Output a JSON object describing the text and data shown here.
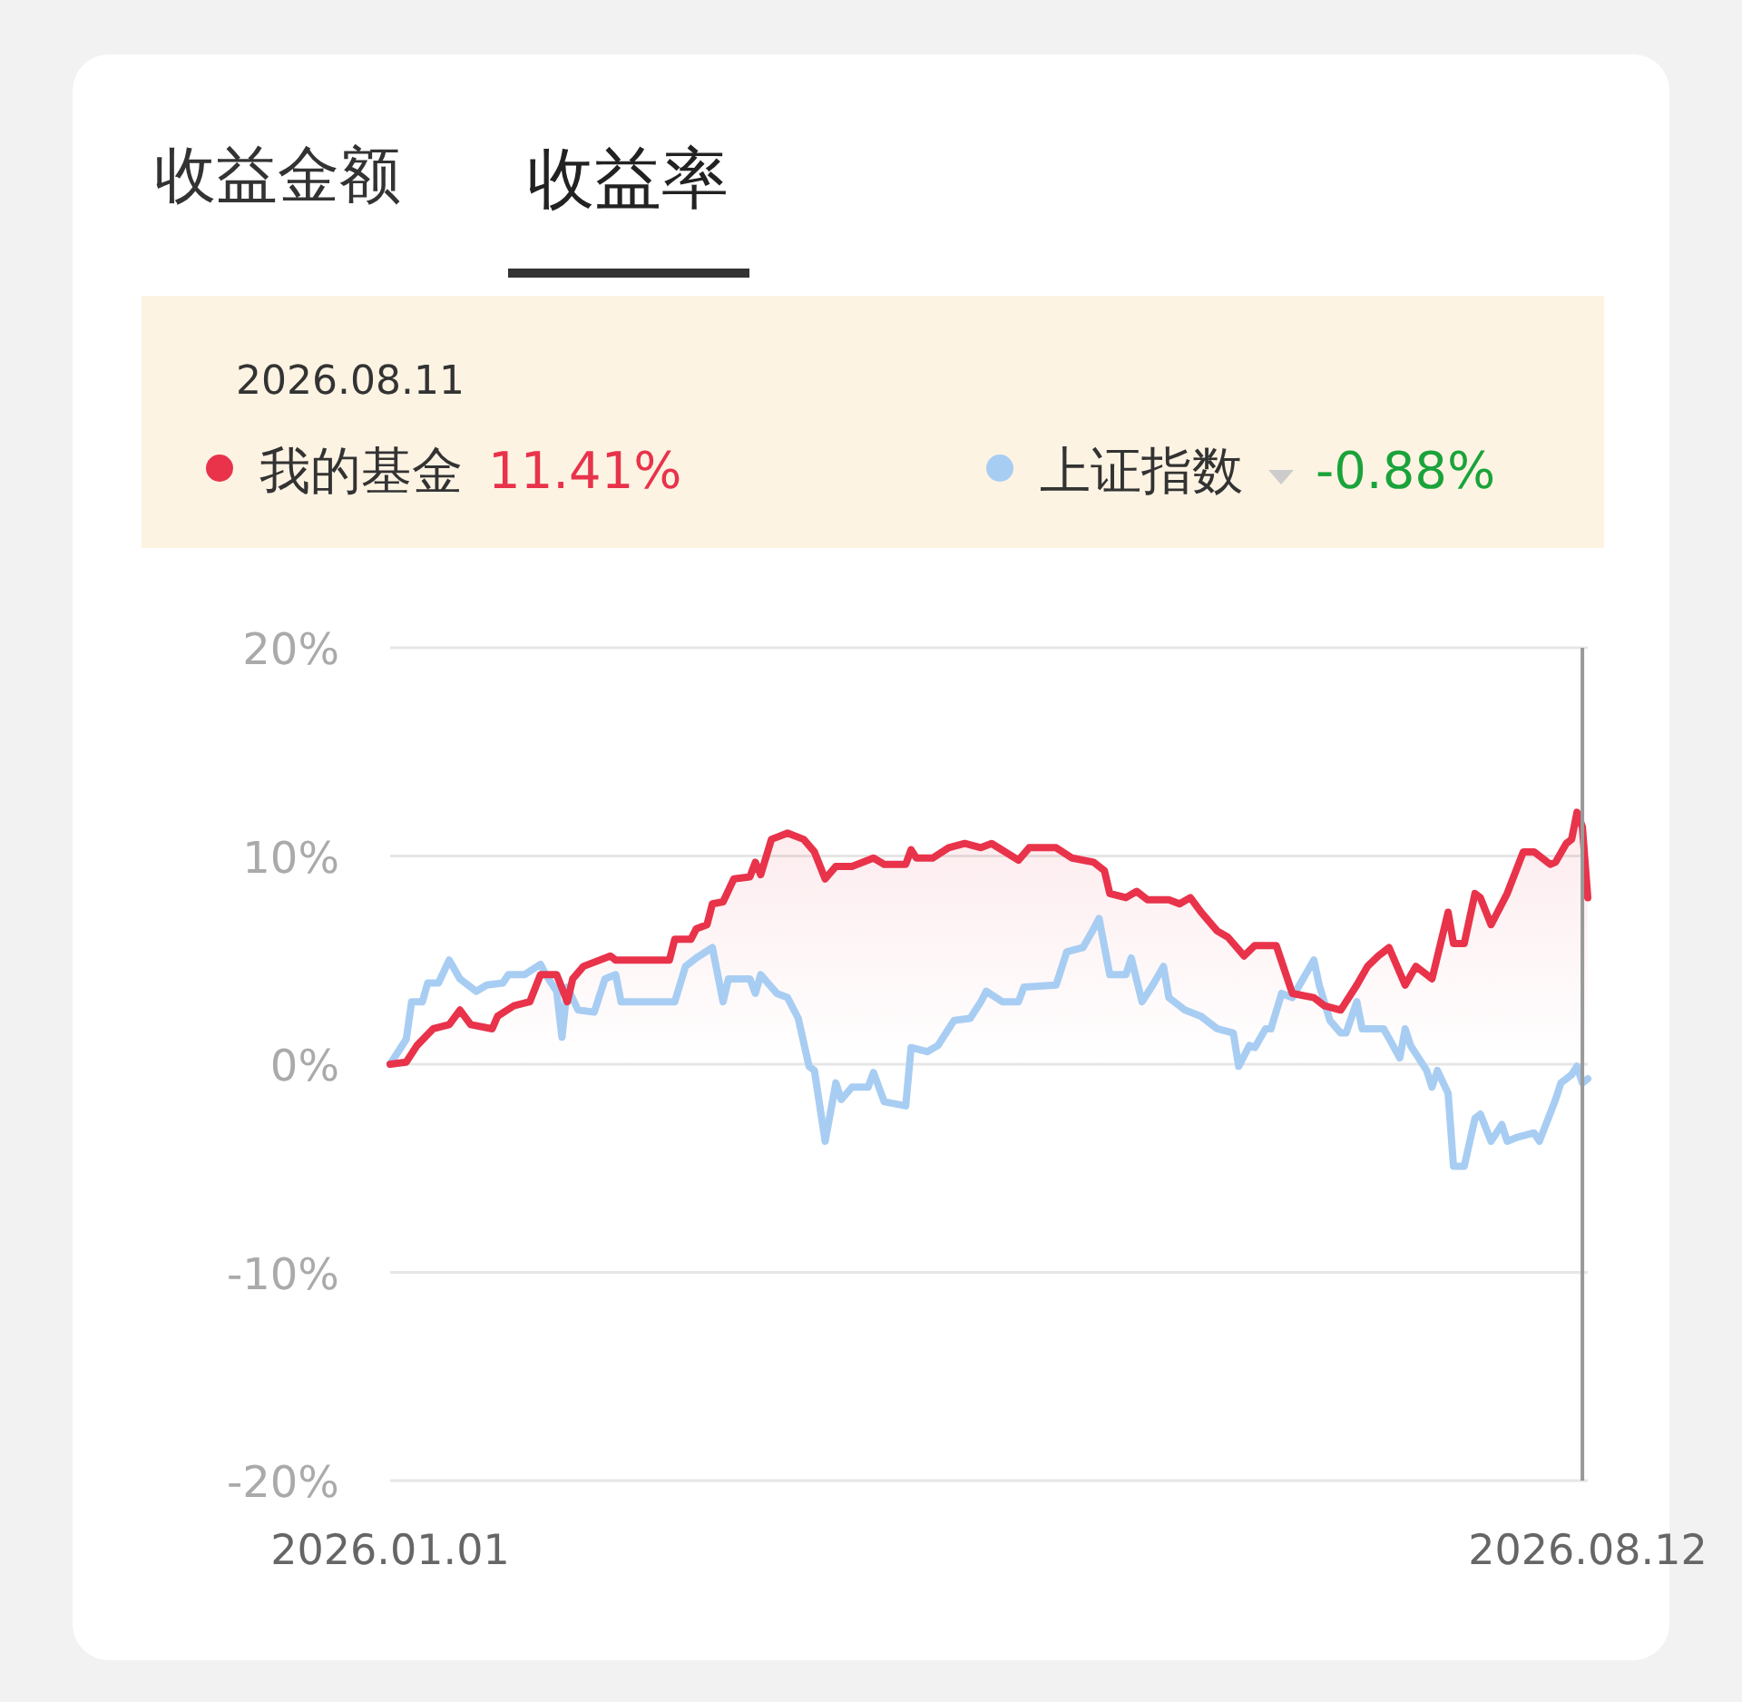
{
  "chart_data": {
    "type": "line",
    "title": "收益率",
    "xlim": [
      "2026-01-01",
      "2026-08-12"
    ],
    "xticks": [
      {
        "value": "2026-01-01",
        "label": "2026.01.01"
      },
      {
        "value": "2026-08-12",
        "label": "2026.08.12"
      }
    ],
    "ylim": [
      -20,
      20
    ],
    "yticks": [
      {
        "value": -20,
        "label": "-20%"
      },
      {
        "value": -10,
        "label": "-10%"
      },
      {
        "value": 0,
        "label": "0%"
      },
      {
        "value": 10,
        "label": "10%"
      },
      {
        "value": 20,
        "label": "20%"
      }
    ],
    "grid": "y",
    "legend": "top",
    "ref_lines": [
      {
        "axis": "x",
        "value": "2026-08-11",
        "color": "#999999"
      }
    ],
    "annotations": [
      "收益金额",
      "2026.08.11",
      "11.41%",
      "-0.88%"
    ],
    "series": [
      {
        "name": "我的基金",
        "type": "area",
        "color": "#e8334a",
        "x": [
          "2026-01-01",
          "2026-01-04",
          "2026-01-06",
          "2026-01-09",
          "2026-01-12",
          "2026-01-14",
          "2026-01-16",
          "2026-01-20",
          "2026-01-21",
          "2026-01-24",
          "2026-01-27",
          "2026-01-29",
          "2026-02-01",
          "2026-02-03",
          "2026-02-04",
          "2026-02-06",
          "2026-02-11",
          "2026-02-12",
          "2026-02-22",
          "2026-02-23",
          "2026-02-26",
          "2026-02-27",
          "2026-03-01",
          "2026-03-02",
          "2026-03-04",
          "2026-03-06",
          "2026-03-09",
          "2026-03-10",
          "2026-03-11",
          "2026-03-13",
          "2026-03-16",
          "2026-03-19",
          "2026-03-21",
          "2026-03-23",
          "2026-03-25",
          "2026-03-28",
          "2026-04-01",
          "2026-04-03",
          "2026-04-07",
          "2026-04-08",
          "2026-04-09",
          "2026-04-12",
          "2026-04-15",
          "2026-04-18",
          "2026-04-21",
          "2026-04-23",
          "2026-04-28",
          "2026-04-30",
          "2026-05-05",
          "2026-05-08",
          "2026-05-12",
          "2026-05-14",
          "2026-05-15",
          "2026-05-18",
          "2026-05-20",
          "2026-05-22",
          "2026-05-26",
          "2026-05-28",
          "2026-05-30",
          "2026-06-01",
          "2026-06-04",
          "2026-06-06",
          "2026-06-09",
          "2026-06-11",
          "2026-06-15",
          "2026-06-18",
          "2026-06-22",
          "2026-06-24",
          "2026-06-27",
          "2026-06-30",
          "2026-07-02",
          "2026-07-04",
          "2026-07-06",
          "2026-07-09",
          "2026-07-11",
          "2026-07-14",
          "2026-07-17",
          "2026-07-18",
          "2026-07-20",
          "2026-07-22",
          "2026-07-23",
          "2026-07-25",
          "2026-07-28",
          "2026-07-31",
          "2026-08-02",
          "2026-08-05",
          "2026-08-06",
          "2026-08-08",
          "2026-08-09",
          "2026-08-10",
          "2026-08-11",
          "2026-08-12"
        ],
        "values": [
          0,
          0.1,
          0.9,
          1.7,
          1.9,
          2.6,
          1.9,
          1.7,
          2.3,
          2.8,
          3.0,
          4.3,
          4.3,
          3.0,
          4.1,
          4.7,
          5.2,
          5.0,
          5.0,
          6.0,
          6.0,
          6.5,
          6.7,
          7.7,
          7.8,
          8.9,
          9.0,
          9.7,
          9.1,
          10.8,
          11.1,
          10.8,
          10.2,
          8.9,
          9.5,
          9.5,
          9.9,
          9.6,
          9.6,
          10.3,
          9.9,
          9.9,
          10.4,
          10.6,
          10.4,
          10.6,
          9.8,
          10.4,
          10.4,
          9.9,
          9.7,
          9.3,
          8.2,
          8.0,
          8.3,
          7.9,
          7.9,
          7.7,
          8.0,
          7.3,
          6.4,
          6.1,
          5.2,
          5.7,
          5.7,
          3.4,
          3.2,
          2.8,
          2.6,
          3.8,
          4.7,
          5.2,
          5.6,
          3.8,
          4.7,
          4.1,
          7.3,
          5.8,
          5.8,
          8.2,
          8.0,
          6.7,
          8.2,
          10.2,
          10.2,
          9.6,
          9.7,
          10.6,
          10.8,
          12.1,
          11.4,
          8.0
        ]
      },
      {
        "name": "上证指数",
        "color": "#a8cdf3",
        "x": [
          "2026-01-01",
          "2026-01-04",
          "2026-01-05",
          "2026-01-07",
          "2026-01-08",
          "2026-01-10",
          "2026-01-12",
          "2026-01-14",
          "2026-01-17",
          "2026-01-19",
          "2026-01-22",
          "2026-01-23",
          "2026-01-26",
          "2026-01-29",
          "2026-01-30",
          "2026-02-01",
          "2026-02-02",
          "2026-02-03",
          "2026-02-05",
          "2026-02-08",
          "2026-02-10",
          "2026-02-12",
          "2026-02-13",
          "2026-02-23",
          "2026-02-25",
          "2026-02-27",
          "2026-03-02",
          "2026-03-04",
          "2026-03-05",
          "2026-03-09",
          "2026-03-10",
          "2026-03-11",
          "2026-03-14",
          "2026-03-16",
          "2026-03-18",
          "2026-03-20",
          "2026-03-21",
          "2026-03-23",
          "2026-03-25",
          "2026-03-26",
          "2026-03-28",
          "2026-03-31",
          "2026-04-01",
          "2026-04-03",
          "2026-04-07",
          "2026-04-08",
          "2026-04-11",
          "2026-04-13",
          "2026-04-15",
          "2026-04-16",
          "2026-04-19",
          "2026-04-21",
          "2026-04-22",
          "2026-04-25",
          "2026-04-28",
          "2026-04-29",
          "2026-05-05",
          "2026-05-07",
          "2026-05-10",
          "2026-05-12",
          "2026-05-13",
          "2026-05-15",
          "2026-05-18",
          "2026-05-19",
          "2026-05-21",
          "2026-05-23",
          "2026-05-25",
          "2026-05-26",
          "2026-05-29",
          "2026-06-01",
          "2026-06-04",
          "2026-06-07",
          "2026-06-08",
          "2026-06-10",
          "2026-06-11",
          "2026-06-13",
          "2026-06-14",
          "2026-06-16",
          "2026-06-18",
          "2026-06-22",
          "2026-06-23",
          "2026-06-25",
          "2026-06-27",
          "2026-06-28",
          "2026-06-30",
          "2026-07-01",
          "2026-07-05",
          "2026-07-08",
          "2026-07-09",
          "2026-07-10",
          "2026-07-13",
          "2026-07-14",
          "2026-07-15",
          "2026-07-17",
          "2026-07-18",
          "2026-07-20",
          "2026-07-22",
          "2026-07-23",
          "2026-07-25",
          "2026-07-27",
          "2026-07-28",
          "2026-07-30",
          "2026-08-02",
          "2026-08-03",
          "2026-08-06",
          "2026-08-07",
          "2026-08-09",
          "2026-08-10",
          "2026-08-11",
          "2026-08-12"
        ],
        "values": [
          0,
          1.2,
          3.0,
          3.0,
          3.9,
          3.9,
          5.0,
          4.1,
          3.5,
          3.8,
          3.9,
          4.3,
          4.3,
          4.8,
          4.3,
          3.5,
          1.3,
          3.7,
          2.6,
          2.5,
          4.1,
          4.3,
          3.0,
          3.0,
          4.7,
          5.1,
          5.6,
          3.0,
          4.1,
          4.1,
          3.4,
          4.3,
          3.4,
          3.2,
          2.2,
          -0.1,
          -0.3,
          -3.7,
          -0.9,
          -1.7,
          -1.1,
          -1.1,
          -0.4,
          -1.8,
          -2.0,
          0.8,
          0.6,
          0.9,
          1.7,
          2.1,
          2.2,
          3.0,
          3.5,
          3.0,
          3.0,
          3.7,
          3.8,
          5.4,
          5.6,
          6.5,
          7.0,
          4.3,
          4.3,
          5.1,
          3.0,
          3.8,
          4.7,
          3.2,
          2.6,
          2.3,
          1.7,
          1.5,
          -0.1,
          0.9,
          0.8,
          1.7,
          1.7,
          3.4,
          3.2,
          5.0,
          3.8,
          2.1,
          1.5,
          1.5,
          3.0,
          1.7,
          1.7,
          0.3,
          1.7,
          0.9,
          -0.3,
          -1.1,
          -0.3,
          -1.4,
          -4.9,
          -4.9,
          -2.6,
          -2.4,
          -3.7,
          -2.9,
          -3.7,
          -3.5,
          -3.3,
          -3.7,
          -1.7,
          -0.9,
          -0.5,
          -0.1,
          -0.9,
          -0.7
        ]
      }
    ]
  }
}
